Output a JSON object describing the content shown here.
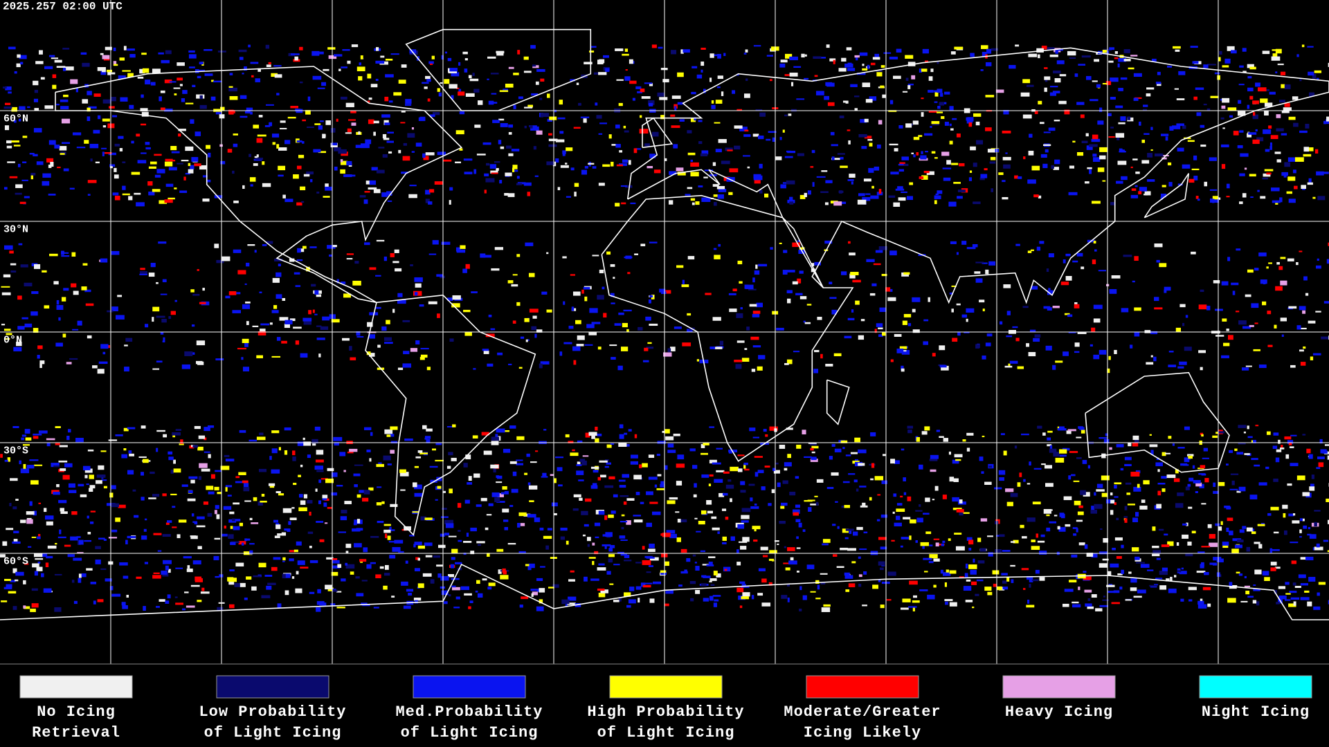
{
  "timestamp": "2025.257 02:00 UTC",
  "latitude_labels": [
    "60°N",
    "30°N",
    "0°N",
    "30°S",
    "60°S"
  ],
  "legend": [
    {
      "label_lines": [
        "No Icing",
        "Retrieval"
      ],
      "color": "#f0f0f0"
    },
    {
      "label_lines": [
        "Low Probability",
        "of Light Icing"
      ],
      "color": "#0a0a6e"
    },
    {
      "label_lines": [
        "Med.Probability",
        "of Light Icing"
      ],
      "color": "#0a14f0"
    },
    {
      "label_lines": [
        "High Probability",
        "of Light Icing"
      ],
      "color": "#ffff00"
    },
    {
      "label_lines": [
        "Moderate/Greater",
        "Icing Likely"
      ],
      "color": "#ff0000"
    },
    {
      "label_lines": [
        "Heavy Icing"
      ],
      "color": "#e6a0e6"
    },
    {
      "label_lines": [
        "Night Icing"
      ],
      "color": "#00ffff"
    }
  ]
}
